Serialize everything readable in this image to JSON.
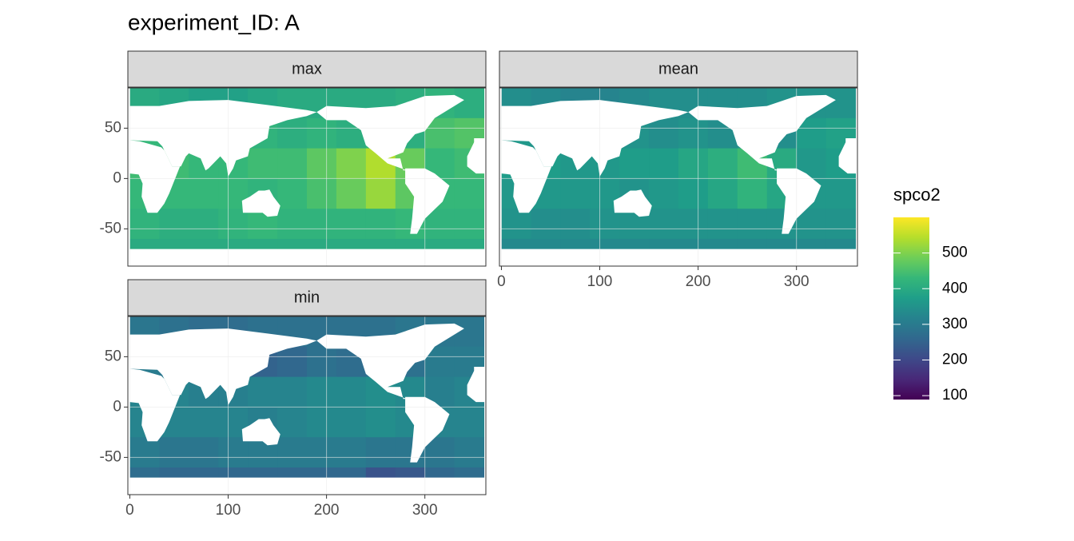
{
  "chart_data": {
    "type": "raster",
    "title": "experiment_ID: A",
    "legend_title": "spco2",
    "xbins": [
      0,
      30,
      60,
      90,
      120,
      150,
      180,
      210,
      240,
      270,
      300,
      330,
      360
    ],
    "ybins": [
      90,
      60,
      30,
      0,
      -30,
      -60,
      -90
    ],
    "xlim": [
      -2,
      362
    ],
    "ylim": [
      -87,
      90
    ],
    "xticks": [
      0,
      100,
      200,
      300
    ],
    "yticks": [
      -50,
      0,
      50
    ],
    "clim": [
      89,
      600
    ],
    "colorbar_ticks": [
      100,
      200,
      300,
      400,
      500
    ],
    "panels": [
      {
        "name": "max",
        "z": [
          [
            400,
            390,
            380,
            380,
            390,
            400,
            400,
            400,
            400,
            410,
            420,
            410
          ],
          [
            430,
            420,
            420,
            430,
            420,
            410,
            420,
            410,
            420,
            410,
            450,
            460
          ],
          [
            440,
            440,
            430,
            430,
            440,
            440,
            470,
            500,
            540,
            480,
            430,
            440
          ],
          [
            430,
            430,
            430,
            430,
            420,
            430,
            450,
            480,
            520,
            470,
            430,
            430
          ],
          [
            420,
            410,
            410,
            420,
            430,
            420,
            420,
            420,
            420,
            430,
            420,
            420
          ],
          [
            400,
            400,
            400,
            400,
            400,
            400,
            400,
            400,
            400,
            400,
            400,
            400
          ]
        ]
      },
      {
        "name": "mean",
        "z": [
          [
            340,
            330,
            320,
            320,
            330,
            340,
            340,
            340,
            340,
            350,
            350,
            350
          ],
          [
            360,
            350,
            350,
            360,
            350,
            340,
            350,
            340,
            350,
            340,
            370,
            380
          ],
          [
            370,
            370,
            360,
            360,
            370,
            370,
            390,
            410,
            440,
            400,
            360,
            370
          ],
          [
            360,
            360,
            360,
            360,
            350,
            360,
            370,
            390,
            420,
            390,
            360,
            360
          ],
          [
            350,
            340,
            340,
            350,
            350,
            350,
            350,
            350,
            350,
            350,
            350,
            350
          ],
          [
            330,
            330,
            330,
            330,
            330,
            330,
            330,
            330,
            330,
            330,
            330,
            330
          ]
        ]
      },
      {
        "name": "min",
        "z": [
          [
            290,
            280,
            270,
            270,
            280,
            280,
            280,
            280,
            280,
            290,
            290,
            290
          ],
          [
            300,
            290,
            290,
            280,
            250,
            260,
            280,
            270,
            280,
            280,
            300,
            300
          ],
          [
            320,
            320,
            310,
            310,
            320,
            320,
            330,
            330,
            340,
            330,
            310,
            320
          ],
          [
            320,
            320,
            320,
            320,
            310,
            320,
            330,
            330,
            340,
            330,
            320,
            320
          ],
          [
            300,
            290,
            290,
            300,
            300,
            300,
            300,
            300,
            290,
            290,
            290,
            300
          ],
          [
            270,
            260,
            260,
            260,
            260,
            260,
            260,
            260,
            220,
            230,
            260,
            270
          ]
        ]
      }
    ]
  }
}
